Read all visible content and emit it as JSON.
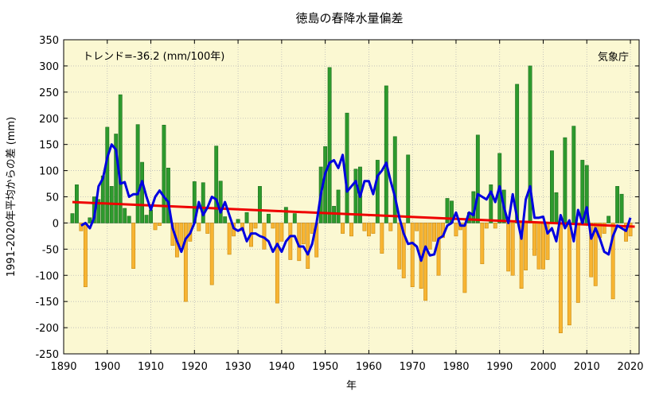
{
  "chart_data": {
    "type": "bar",
    "title": "徳島の春降水量偏差",
    "xlabel": "年",
    "ylabel": "1991-2020年平均からの差 (mm)",
    "trend_text": "トレンド=-36.2 (mm/100年)",
    "source": "気象庁",
    "xlim": [
      1890,
      2022
    ],
    "ylim": [
      -250,
      350
    ],
    "xticks": [
      1890,
      1900,
      1910,
      1920,
      1930,
      1940,
      1950,
      1960,
      1970,
      1980,
      1990,
      2000,
      2010,
      2020
    ],
    "yticks": [
      -250,
      -200,
      -150,
      -100,
      -50,
      0,
      50,
      100,
      150,
      200,
      250,
      300,
      350
    ],
    "grid": true,
    "colors": {
      "plot_background": "#fbf8d2",
      "positive_bar": "#2d9a2d",
      "negative_bar": "#f7b432",
      "running_mean": "#0000e0",
      "trend": "#ee0000",
      "grid": "#b8b8b8"
    },
    "years": [
      1892,
      1893,
      1894,
      1895,
      1896,
      1897,
      1898,
      1899,
      1900,
      1901,
      1902,
      1903,
      1904,
      1905,
      1906,
      1907,
      1908,
      1909,
      1910,
      1911,
      1912,
      1913,
      1914,
      1915,
      1916,
      1917,
      1918,
      1919,
      1920,
      1921,
      1922,
      1923,
      1924,
      1925,
      1926,
      1927,
      1928,
      1929,
      1930,
      1931,
      1932,
      1933,
      1934,
      1935,
      1936,
      1937,
      1938,
      1939,
      1940,
      1941,
      1942,
      1943,
      1944,
      1945,
      1946,
      1947,
      1948,
      1949,
      1950,
      1951,
      1952,
      1953,
      1954,
      1955,
      1956,
      1957,
      1958,
      1959,
      1960,
      1961,
      1962,
      1963,
      1964,
      1965,
      1966,
      1967,
      1968,
      1969,
      1970,
      1971,
      1972,
      1973,
      1974,
      1975,
      1976,
      1977,
      1978,
      1979,
      1980,
      1981,
      1982,
      1983,
      1984,
      1985,
      1986,
      1987,
      1988,
      1989,
      1990,
      1991,
      1992,
      1993,
      1994,
      1995,
      1996,
      1997,
      1998,
      1999,
      2000,
      2001,
      2002,
      2003,
      2004,
      2005,
      2006,
      2007,
      2008,
      2009,
      2010,
      2011,
      2012,
      2013,
      2014,
      2015,
      2016,
      2017,
      2018,
      2019,
      2020
    ],
    "series": [
      {
        "name": "",
        "kind": "bar",
        "values": [
          18,
          73,
          -15,
          -122,
          10,
          50,
          45,
          90,
          183,
          70,
          170,
          245,
          28,
          13,
          -87,
          188,
          116,
          15,
          25,
          -13,
          -5,
          187,
          105,
          -43,
          -65,
          -45,
          -150,
          -35,
          79,
          -15,
          77,
          -20,
          -118,
          147,
          80,
          12,
          -60,
          -25,
          7,
          -15,
          20,
          -45,
          -10,
          70,
          -50,
          17,
          -10,
          -153,
          -35,
          30,
          -70,
          18,
          -72,
          -40,
          -87,
          -20,
          -65,
          107,
          146,
          297,
          32,
          63,
          -20,
          210,
          -25,
          103,
          107,
          -15,
          -25,
          -20,
          120,
          -58,
          262,
          -15,
          165,
          -88,
          -105,
          130,
          -122,
          -15,
          -125,
          -148,
          -50,
          -35,
          -100,
          -28,
          47,
          42,
          -25,
          -13,
          -133,
          20,
          60,
          168,
          -78,
          -10,
          73,
          -10,
          133,
          63,
          -92,
          -100,
          265,
          -125,
          -90,
          300,
          -62,
          -88,
          -88,
          -70,
          138,
          58,
          -210,
          163,
          -195,
          185,
          -152,
          120,
          110,
          -103,
          -120,
          -28,
          -20,
          13,
          -145,
          70,
          55,
          -35,
          -25
        ]
      },
      {
        "name": "",
        "kind": "line",
        "x": [
          1894,
          1895,
          1896,
          1897,
          1898,
          1899,
          1900,
          1901,
          1902,
          1903,
          1904,
          1905,
          1906,
          1907,
          1908,
          1909,
          1910,
          1911,
          1912,
          1913,
          1914,
          1915,
          1916,
          1917,
          1918,
          1919,
          1920,
          1921,
          1922,
          1923,
          1924,
          1925,
          1926,
          1927,
          1928,
          1929,
          1930,
          1931,
          1932,
          1933,
          1934,
          1935,
          1936,
          1937,
          1938,
          1939,
          1940,
          1941,
          1942,
          1943,
          1944,
          1945,
          1946,
          1947,
          1948,
          1949,
          1950,
          1951,
          1952,
          1953,
          1954,
          1955,
          1956,
          1957,
          1958,
          1959,
          1960,
          1961,
          1962,
          1963,
          1964,
          1965,
          1966,
          1967,
          1968,
          1969,
          1970,
          1971,
          1972,
          1973,
          1974,
          1975,
          1976,
          1977,
          1978,
          1979,
          1980,
          1981,
          1982,
          1983,
          1984,
          1985,
          1986,
          1987,
          1988,
          1989,
          1990,
          1991,
          1992,
          1993,
          1994,
          1995,
          1996,
          1997,
          1998,
          1999,
          2000,
          2001,
          2002,
          2003,
          2004,
          2005,
          2006,
          2007,
          2008,
          2009,
          2010,
          2011,
          2012,
          2013,
          2014,
          2015,
          2016,
          2017,
          2018,
          2019,
          2020
        ],
        "values": [
          -5,
          0,
          -10,
          10,
          70,
          85,
          125,
          150,
          140,
          75,
          78,
          50,
          55,
          55,
          80,
          50,
          25,
          50,
          62,
          50,
          40,
          -10,
          -35,
          -55,
          -30,
          -20,
          0,
          40,
          15,
          30,
          50,
          45,
          20,
          40,
          15,
          -10,
          -15,
          -10,
          -35,
          -20,
          -20,
          -25,
          -28,
          -35,
          -55,
          -40,
          -55,
          -35,
          -25,
          -25,
          -45,
          -45,
          -60,
          -40,
          0,
          55,
          95,
          115,
          120,
          105,
          130,
          60,
          70,
          80,
          50,
          80,
          80,
          55,
          90,
          100,
          115,
          80,
          50,
          10,
          -20,
          -40,
          -38,
          -45,
          -72,
          -45,
          -62,
          -60,
          -30,
          -25,
          -5,
          0,
          20,
          -5,
          -5,
          20,
          15,
          55,
          50,
          45,
          60,
          40,
          70,
          30,
          0,
          55,
          10,
          -30,
          45,
          70,
          10,
          10,
          12,
          -20,
          -10,
          -35,
          15,
          -10,
          5,
          -35,
          25,
          0,
          30,
          -30,
          -10,
          -30,
          -55,
          -60,
          -25,
          -5,
          -10,
          -15,
          10
        ]
      },
      {
        "name": "",
        "kind": "trend",
        "x": [
          1892,
          2021
        ],
        "values": [
          40,
          -7
        ]
      }
    ]
  }
}
